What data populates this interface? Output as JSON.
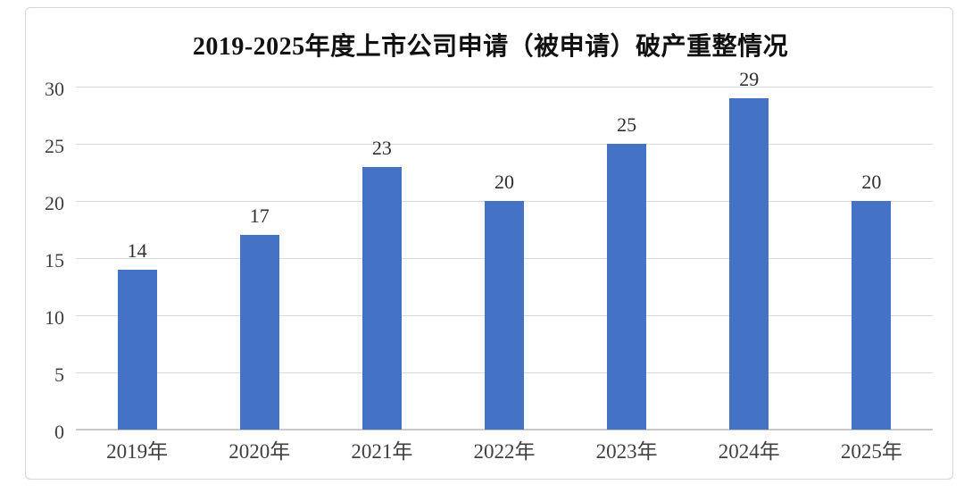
{
  "page": {
    "background_color": "#ffffff",
    "frame_border_color": "#d6d6d6"
  },
  "chart_data": {
    "type": "bar",
    "title": "2019-2025年度上市公司申请（被申请）破产重整情况",
    "categories": [
      "2019年",
      "2020年",
      "2021年",
      "2022年",
      "2023年",
      "2024年",
      "2025年"
    ],
    "values": [
      14,
      17,
      23,
      20,
      25,
      29,
      20
    ],
    "data_labels": [
      "14",
      "17",
      "23",
      "20",
      "25",
      "29",
      "20"
    ],
    "xlabel": "",
    "ylabel": "",
    "y_ticks": [
      0,
      5,
      10,
      15,
      20,
      25,
      30
    ],
    "ylim": [
      0,
      30
    ],
    "grid": "horizontal",
    "legend_position": "none",
    "bar_color": "#4472C4",
    "gridline_color": "#dadada",
    "axis_line_color": "#c9c9c9",
    "tick_label_color": "#3f3f3f",
    "value_label_color": "#2e2e2e",
    "title_color": "#111111"
  }
}
